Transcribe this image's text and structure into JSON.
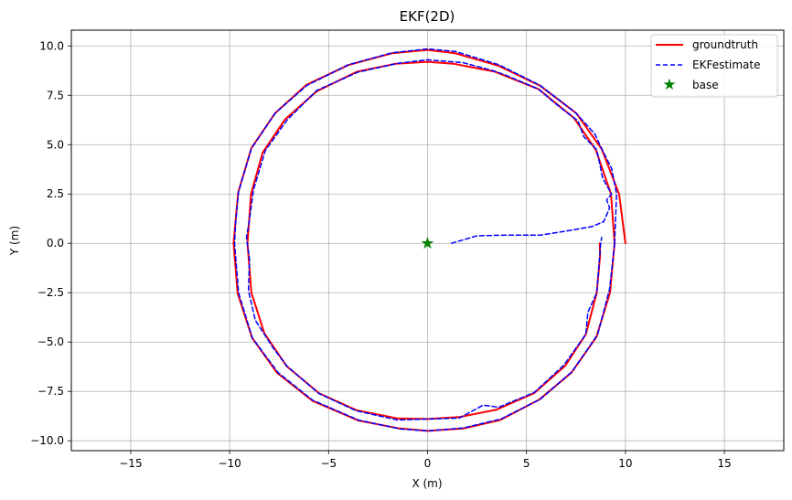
{
  "chart_data": {
    "type": "line",
    "title": "EKF(2D)",
    "xlabel": "X (m)",
    "ylabel": "Y (m)",
    "xlim": [
      -18,
      18
    ],
    "ylim": [
      -10.5,
      10.8
    ],
    "xticks": [
      -15,
      -10,
      -5,
      0,
      5,
      10,
      15
    ],
    "xtick_labels": [
      "−15",
      "−10",
      "−5",
      "0",
      "5",
      "10",
      "15"
    ],
    "yticks": [
      -10,
      -7.5,
      -5,
      -2.5,
      0,
      2.5,
      5,
      7.5,
      10
    ],
    "ytick_labels": [
      "−10.0",
      "−7.5",
      "−5.0",
      "−2.5",
      "0.0",
      "2.5",
      "5.0",
      "7.5",
      "10.0"
    ],
    "grid": true,
    "legend_position": "top-right",
    "legend": [
      {
        "label": "groundtruth",
        "style": "solid",
        "color": "#ff0000"
      },
      {
        "label": "EKFestimate",
        "style": "dashed",
        "color": "#0000ff"
      },
      {
        "label": "base",
        "style": "star",
        "color": "#008000"
      }
    ],
    "series": [
      {
        "name": "groundtruth",
        "style": "solid",
        "color": "#ff0000",
        "points": [
          [
            10,
            0
          ],
          [
            9.68,
            2.49
          ],
          [
            8.8,
            4.78
          ],
          [
            7.52,
            6.59
          ],
          [
            5.7,
            7.98
          ],
          [
            3.6,
            8.99
          ],
          [
            1.4,
            9.63
          ],
          [
            0,
            9.8
          ],
          [
            -1.8,
            9.63
          ],
          [
            -4,
            9.03
          ],
          [
            -6.12,
            8.03
          ],
          [
            -7.7,
            6.6
          ],
          [
            -8.9,
            4.83
          ],
          [
            -9.57,
            2.58
          ],
          [
            -9.8,
            0
          ],
          [
            -9.6,
            -2.52
          ],
          [
            -8.87,
            -4.78
          ],
          [
            -7.6,
            -6.56
          ],
          [
            -5.81,
            -7.98
          ],
          [
            -3.48,
            -8.98
          ],
          [
            -1.4,
            -9.38
          ],
          [
            0,
            -9.5
          ],
          [
            1.8,
            -9.38
          ],
          [
            3.67,
            -8.95
          ],
          [
            5.64,
            -7.92
          ],
          [
            7.27,
            -6.55
          ],
          [
            8.53,
            -4.75
          ],
          [
            9.22,
            -2.5
          ],
          [
            9.45,
            0
          ],
          [
            9.27,
            2.5
          ],
          [
            8.5,
            4.75
          ],
          [
            7.4,
            6.35
          ],
          [
            5.6,
            7.82
          ],
          [
            3.4,
            8.7
          ],
          [
            1.3,
            9.1
          ],
          [
            0,
            9.2
          ],
          [
            -1.6,
            9.1
          ],
          [
            -3.56,
            8.7
          ],
          [
            -5.6,
            7.7
          ],
          [
            -7.2,
            6.28
          ],
          [
            -8.33,
            4.6
          ],
          [
            -8.92,
            2.5
          ],
          [
            -9.1,
            0
          ],
          [
            -8.9,
            -2.5
          ],
          [
            -8.25,
            -4.55
          ],
          [
            -7.12,
            -6.22
          ],
          [
            -5.47,
            -7.6
          ],
          [
            -3.6,
            -8.45
          ],
          [
            -1.5,
            -8.87
          ],
          [
            0,
            -8.9
          ],
          [
            1.6,
            -8.8
          ],
          [
            3.5,
            -8.42
          ],
          [
            5.4,
            -7.58
          ],
          [
            6.96,
            -6.2
          ],
          [
            8.0,
            -4.6
          ],
          [
            8.55,
            -2.5
          ],
          [
            8.72,
            -0.6
          ],
          [
            8.7,
            0
          ]
        ]
      },
      {
        "name": "EKFestimate",
        "style": "dashed",
        "color": "#0000ff",
        "points": [
          [
            1.2,
            0
          ],
          [
            2.5,
            0.38
          ],
          [
            4,
            0.42
          ],
          [
            5.7,
            0.42
          ],
          [
            7,
            0.62
          ],
          [
            8.3,
            0.85
          ],
          [
            8.9,
            1.1
          ],
          [
            9.2,
            1.8
          ],
          [
            9.05,
            2.2
          ],
          [
            9.3,
            2.5
          ],
          [
            8.85,
            3.3
          ],
          [
            8.55,
            4.75
          ],
          [
            7.9,
            5.4
          ],
          [
            7.6,
            6.2
          ],
          [
            6.5,
            7.05
          ],
          [
            5.6,
            7.82
          ],
          [
            4.0,
            8.5
          ],
          [
            3.4,
            8.72
          ],
          [
            1.8,
            9.15
          ],
          [
            0,
            9.3
          ],
          [
            -1.5,
            9.12
          ],
          [
            -3.5,
            8.68
          ],
          [
            -5.6,
            7.75
          ],
          [
            -7.1,
            6.25
          ],
          [
            -8.2,
            4.7
          ],
          [
            -8.8,
            2.7
          ],
          [
            -9.0,
            1.2
          ],
          [
            -9.15,
            0.3
          ],
          [
            -9.0,
            -0.8
          ],
          [
            -9.05,
            -2.4
          ],
          [
            -8.7,
            -3.9
          ],
          [
            -8.25,
            -4.6
          ],
          [
            -7.8,
            -5.3
          ],
          [
            -7.1,
            -6.22
          ],
          [
            -5.5,
            -7.6
          ],
          [
            -3.6,
            -8.48
          ],
          [
            -1.5,
            -8.95
          ],
          [
            0,
            -8.9
          ],
          [
            1.6,
            -8.85
          ],
          [
            2.8,
            -8.2
          ],
          [
            3.6,
            -8.3
          ],
          [
            5.4,
            -7.55
          ],
          [
            6.9,
            -6.15
          ],
          [
            8.0,
            -4.6
          ],
          [
            8.1,
            -3.5
          ],
          [
            8.55,
            -2.5
          ],
          [
            8.7,
            -0.6
          ],
          [
            8.75,
            0
          ],
          [
            8.8,
            0.3
          ]
        ]
      },
      {
        "name": "EKFestimate-outer",
        "style": "dashed",
        "color": "#0000ff",
        "points": [
          [
            9.45,
            0
          ],
          [
            9.2,
            -2.3
          ],
          [
            8.6,
            -4.6
          ],
          [
            8.2,
            -5.2
          ],
          [
            7.3,
            -6.5
          ],
          [
            5.7,
            -7.9
          ],
          [
            3.7,
            -8.9
          ],
          [
            1.8,
            -9.35
          ],
          [
            0,
            -9.5
          ],
          [
            -1.4,
            -9.4
          ],
          [
            -3.5,
            -8.95
          ],
          [
            -5.8,
            -7.95
          ],
          [
            -7.55,
            -6.55
          ],
          [
            -8.85,
            -4.8
          ],
          [
            -9.55,
            -2.5
          ],
          [
            -9.75,
            0
          ],
          [
            -9.7,
            1.0
          ],
          [
            -9.55,
            2.6
          ],
          [
            -8.9,
            4.8
          ],
          [
            -7.7,
            6.6
          ],
          [
            -6.1,
            8.0
          ],
          [
            -4.0,
            9.05
          ],
          [
            -1.8,
            9.65
          ],
          [
            0,
            9.85
          ],
          [
            1.4,
            9.72
          ],
          [
            3.6,
            9.05
          ],
          [
            5.7,
            8.0
          ],
          [
            7.5,
            6.6
          ],
          [
            8.0,
            6.05
          ],
          [
            8.45,
            5.55
          ],
          [
            8.8,
            4.8
          ],
          [
            9.3,
            3.8
          ],
          [
            9.55,
            2.5
          ],
          [
            9.45,
            0
          ]
        ]
      }
    ],
    "markers": [
      {
        "name": "base",
        "x": 0,
        "y": 0,
        "shape": "star",
        "color": "#008000"
      }
    ]
  }
}
